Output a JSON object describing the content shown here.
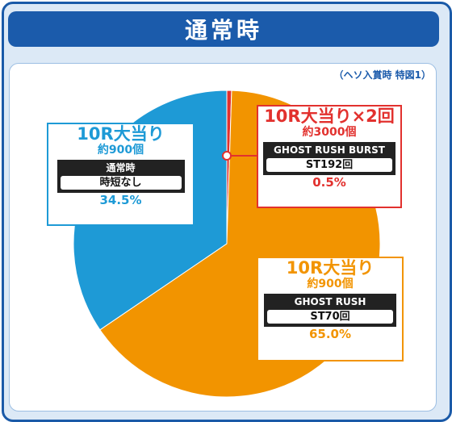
{
  "title": "通常時",
  "note": "（ヘソ入賞時 特図1）",
  "colors": {
    "blue": "#1e9ad6",
    "orange": "#f29400",
    "red": "#e2312e",
    "frame": "#1b5bab"
  },
  "callouts": {
    "blue": {
      "title": "10R大当り",
      "count": "約900個",
      "mode": "通常時",
      "mode_detail": "時短なし",
      "percent": "34.5%"
    },
    "red": {
      "title": "10R大当り×2回",
      "count": "約3000個",
      "mode": "GHOST RUSH BURST",
      "mode_detail": "ST192回",
      "percent": "0.5%"
    },
    "orange": {
      "title": "10R大当り",
      "count": "約900個",
      "mode": "GHOST RUSH",
      "mode_detail": "ST70回",
      "percent": "65.0%"
    }
  },
  "chart_data": {
    "type": "pie",
    "slices": [
      {
        "label": "10R大当り×2回 約3000個 GHOST RUSH BURST ST192回",
        "value": 0.5,
        "color": "#e2312e"
      },
      {
        "label": "10R大当り 約900個 GHOST RUSH ST70回",
        "value": 65.0,
        "color": "#f29400"
      },
      {
        "label": "10R大当り 約900個 通常時 時短なし",
        "value": 34.5,
        "color": "#1e9ad6"
      }
    ]
  }
}
